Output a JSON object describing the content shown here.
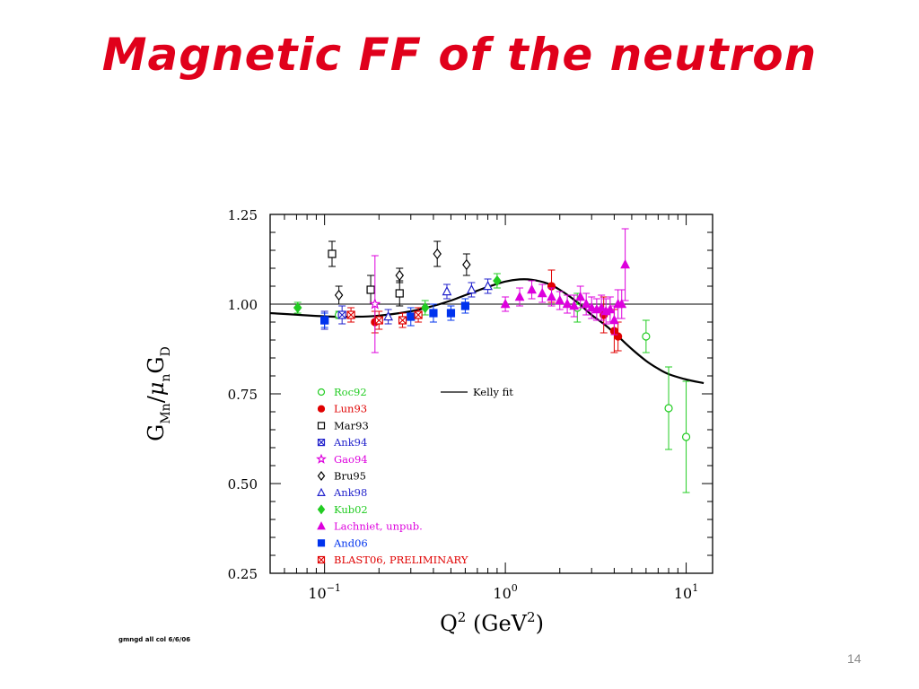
{
  "slide": {
    "title": "Magnetic FF of the neutron",
    "footnote": "gmngd all col 6/6/06",
    "number": "14"
  },
  "chart_data": {
    "type": "scatter",
    "xlabel": "Q",
    "xlabel_unit": "(GeV",
    "ylabel_parts": [
      "G",
      "Mn",
      "/",
      "μ",
      "n",
      "G",
      "D"
    ],
    "xscale": "log",
    "xlim": [
      0.05,
      14
    ],
    "ylim": [
      0.25,
      1.25
    ],
    "yticks": [
      "0.25",
      "0.50",
      "0.75",
      "1.00",
      "1.25"
    ],
    "ytick_values": [
      0.25,
      0.5,
      0.75,
      1.0,
      1.25
    ],
    "xticks": [
      {
        "value": 0.1,
        "base": "10",
        "exp": "−1"
      },
      {
        "value": 1,
        "base": "10",
        "exp": "0"
      },
      {
        "value": 10,
        "base": "10",
        "exp": "1"
      }
    ],
    "reference_line": 1.0,
    "legend_position": "center-left",
    "fit": {
      "name": "Kelly fit",
      "points": [
        [
          0.05,
          0.975
        ],
        [
          0.1,
          0.966
        ],
        [
          0.15,
          0.965
        ],
        [
          0.2,
          0.968
        ],
        [
          0.3,
          0.98
        ],
        [
          0.4,
          0.995
        ],
        [
          0.5,
          1.01
        ],
        [
          0.6,
          1.025
        ],
        [
          0.8,
          1.048
        ],
        [
          1.0,
          1.063
        ],
        [
          1.2,
          1.069
        ],
        [
          1.4,
          1.068
        ],
        [
          1.7,
          1.058
        ],
        [
          2.0,
          1.04
        ],
        [
          2.5,
          1.005
        ],
        [
          3.0,
          0.97
        ],
        [
          3.5,
          0.945
        ],
        [
          4.0,
          0.92
        ],
        [
          5.0,
          0.875
        ],
        [
          6.0,
          0.842
        ],
        [
          7.0,
          0.82
        ],
        [
          8.0,
          0.805
        ],
        [
          10.0,
          0.79
        ],
        [
          12.5,
          0.78
        ]
      ]
    },
    "series": [
      {
        "name": "Roc92",
        "color": "#22cc22",
        "marker": "circle-open",
        "points": [
          [
            0.12,
            0.97,
            0.01
          ],
          [
            2.5,
            0.99,
            0.04
          ],
          [
            6.0,
            0.91,
            0.045
          ],
          [
            8.0,
            0.71,
            0.115
          ],
          [
            10.0,
            0.63,
            0.155
          ]
        ]
      },
      {
        "name": "Lun93",
        "color": "#e00000",
        "marker": "circle-filled",
        "points": [
          [
            0.19,
            0.95,
            0.03
          ],
          [
            1.8,
            1.05,
            0.045
          ],
          [
            3.5,
            0.97,
            0.05
          ],
          [
            4.0,
            0.925,
            0.06
          ],
          [
            4.2,
            0.91,
            0.04
          ]
        ]
      },
      {
        "name": "Mar93",
        "color": "#000000",
        "marker": "square-open",
        "points": [
          [
            0.11,
            1.14,
            0.035
          ],
          [
            0.18,
            1.04,
            0.04
          ],
          [
            0.26,
            1.03,
            0.035
          ]
        ]
      },
      {
        "name": "Ank94",
        "color": "#2222cc",
        "marker": "square-x",
        "points": [
          [
            0.1,
            0.955,
            0.025
          ],
          [
            0.125,
            0.97,
            0.025
          ]
        ]
      },
      {
        "name": "Gao94",
        "color": "#dd00dd",
        "marker": "star",
        "points": [
          [
            0.19,
            1.0,
            0.135
          ]
        ]
      },
      {
        "name": "Bru95",
        "color": "#000000",
        "marker": "diamond-open",
        "points": [
          [
            0.12,
            1.025,
            0.025
          ],
          [
            0.26,
            1.08,
            0.02
          ],
          [
            0.42,
            1.14,
            0.035
          ],
          [
            0.61,
            1.11,
            0.03
          ]
        ]
      },
      {
        "name": "Ank98",
        "color": "#2222cc",
        "marker": "triangle-open",
        "points": [
          [
            0.225,
            0.965,
            0.02
          ],
          [
            0.475,
            1.035,
            0.02
          ],
          [
            0.65,
            1.04,
            0.02
          ],
          [
            0.8,
            1.05,
            0.02
          ]
        ]
      },
      {
        "name": "Kub02",
        "color": "#22cc22",
        "marker": "diamond-filled",
        "points": [
          [
            0.071,
            0.99,
            0.015
          ],
          [
            0.36,
            0.99,
            0.02
          ],
          [
            0.9,
            1.065,
            0.02
          ]
        ]
      },
      {
        "name": "Lachniet, unpub.",
        "color": "#dd00dd",
        "marker": "triangle-filled",
        "points": [
          [
            1.0,
            1.0,
            0.02
          ],
          [
            1.2,
            1.02,
            0.025
          ],
          [
            1.4,
            1.04,
            0.025
          ],
          [
            1.6,
            1.03,
            0.025
          ],
          [
            1.8,
            1.02,
            0.025
          ],
          [
            2.0,
            1.01,
            0.025
          ],
          [
            2.2,
            1.0,
            0.025
          ],
          [
            2.4,
            0.995,
            0.03
          ],
          [
            2.6,
            1.02,
            0.03
          ],
          [
            2.8,
            1.0,
            0.03
          ],
          [
            3.0,
            0.99,
            0.03
          ],
          [
            3.2,
            0.985,
            0.03
          ],
          [
            3.4,
            0.99,
            0.035
          ],
          [
            3.6,
            0.98,
            0.035
          ],
          [
            3.8,
            0.985,
            0.035
          ],
          [
            4.0,
            0.955,
            0.04
          ],
          [
            4.2,
            1.0,
            0.04
          ],
          [
            4.4,
            1.0,
            0.04
          ],
          [
            4.6,
            1.11,
            0.1
          ]
        ]
      },
      {
        "name": "And06",
        "color": "#0033ee",
        "marker": "square-filled",
        "points": [
          [
            0.1,
            0.955,
            0.02
          ],
          [
            0.3,
            0.965,
            0.025
          ],
          [
            0.4,
            0.975,
            0.025
          ],
          [
            0.5,
            0.975,
            0.02
          ],
          [
            0.6,
            0.995,
            0.02
          ]
        ]
      },
      {
        "name": "BLAST06,    PRELIMINARY",
        "color": "#e00000",
        "marker": "square-x",
        "points": [
          [
            0.14,
            0.97,
            0.02
          ],
          [
            0.2,
            0.955,
            0.025
          ],
          [
            0.27,
            0.955,
            0.02
          ],
          [
            0.33,
            0.97,
            0.02
          ]
        ]
      }
    ]
  }
}
